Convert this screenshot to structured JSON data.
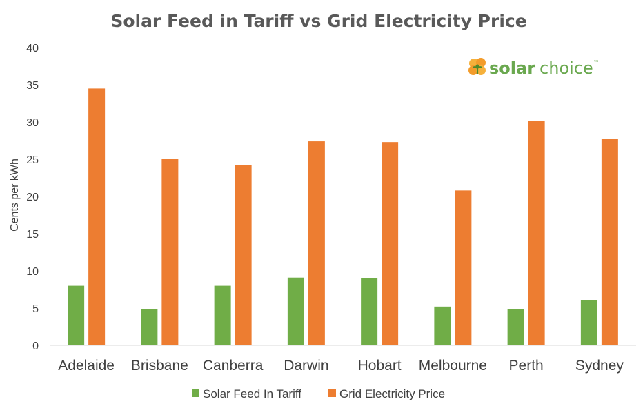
{
  "logo": {
    "word1": "solar",
    "word2": "choice",
    "tm": "™",
    "brand_green": "#6aa84f",
    "brand_orange": "#f39c2b",
    "icon": "solar-choice-flower-icon"
  },
  "colors": {
    "series1": "#70ad47",
    "series2": "#ed7d31"
  },
  "chart_data": {
    "type": "bar",
    "title": "Solar Feed in Tariff vs Grid Electricity Price",
    "xlabel": "",
    "ylabel": "Cents per kWh",
    "ylim": [
      0,
      40
    ],
    "yticks": [
      "0",
      "5",
      "10",
      "15",
      "20",
      "25",
      "30",
      "35",
      "40"
    ],
    "categories": [
      "Adelaide",
      "Brisbane",
      "Canberra",
      "Darwin",
      "Hobart",
      "Melbourne",
      "Perth",
      "Sydney"
    ],
    "series": [
      {
        "name": "Solar Feed In Tariff",
        "values": [
          8.0,
          4.9,
          8.0,
          9.1,
          9.0,
          5.2,
          4.9,
          6.1
        ]
      },
      {
        "name": "Grid Electricity Price",
        "values": [
          34.5,
          25.0,
          24.2,
          27.4,
          27.3,
          20.8,
          30.1,
          27.7
        ]
      }
    ],
    "grid": false,
    "legend": "bottom"
  }
}
